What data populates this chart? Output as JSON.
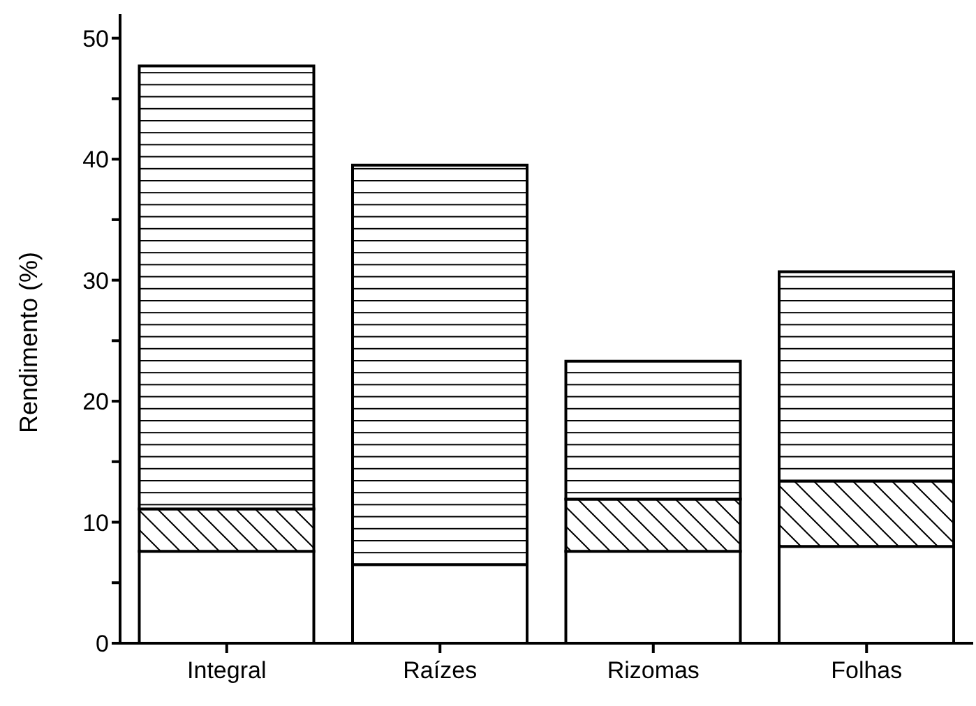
{
  "chart_data": {
    "type": "bar",
    "ylabel": "Rendimento (%)",
    "stacked": true,
    "categories": [
      "Integral",
      "Raízes",
      "Rizomas",
      "Folhas"
    ],
    "series": [
      {
        "color": "#ffffff",
        "values": [
          7.6,
          6.5,
          7.6,
          8.0
        ]
      },
      {
        "color": "#000000",
        "values": [
          3.5,
          0,
          4.3,
          5.4
        ]
      },
      {
        "color": "#000000",
        "values": [
          36.6,
          33.0,
          11.4,
          17.3
        ]
      }
    ],
    "ylim": [
      0,
      52
    ],
    "yticks": [
      0,
      {
        "value": 5,
        "label": null
      },
      10,
      {
        "value": 15,
        "label": null
      },
      20,
      {
        "value": 25,
        "label": null
      },
      30,
      {
        "value": 35,
        "label": null
      },
      40,
      {
        "value": 45,
        "label": null
      },
      50
    ],
    "grid": false
  }
}
